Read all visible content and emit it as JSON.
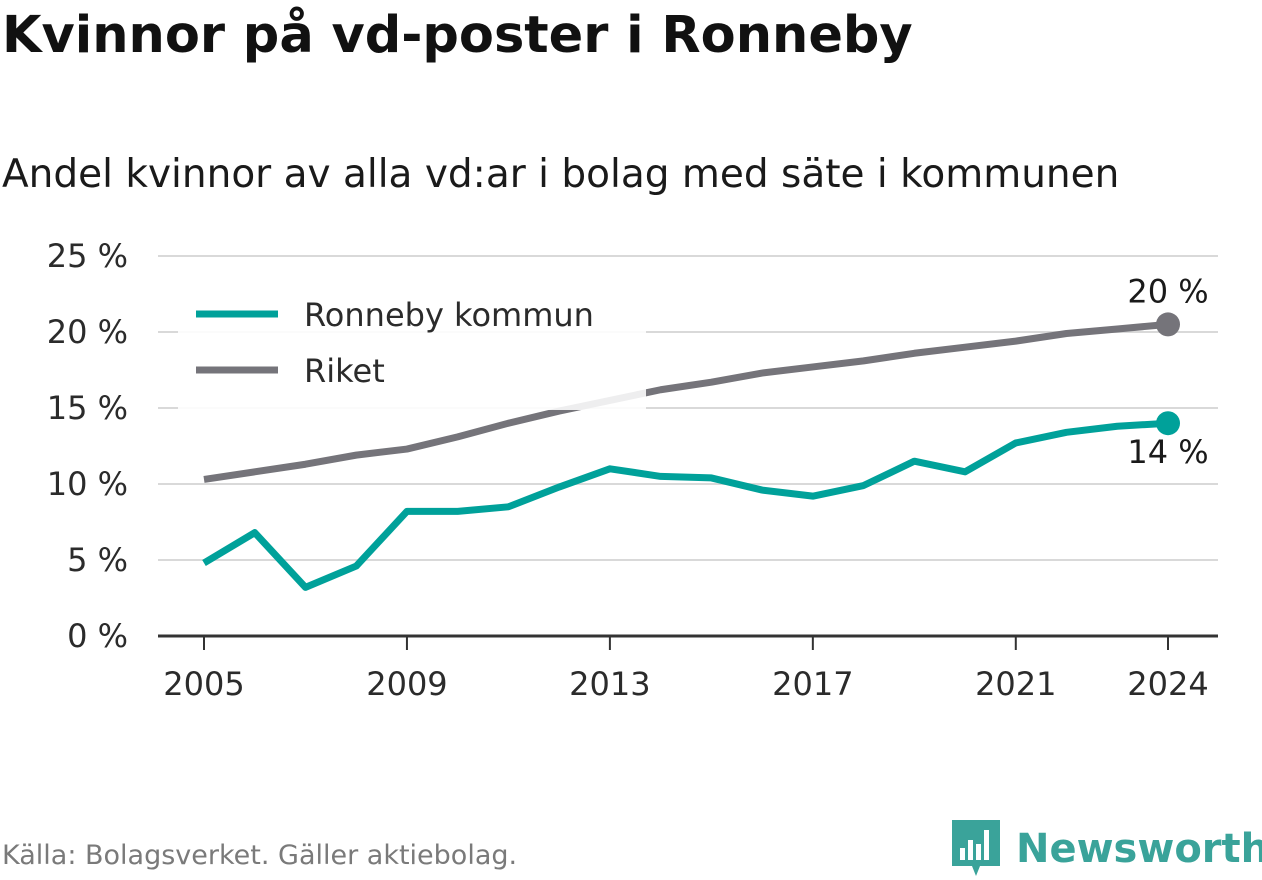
{
  "title": "Kvinnor på vd-poster i Ronneby",
  "subtitle": "Andel kvinnor av alla vd:ar i bolag med säte i kommunen",
  "source": "Källa: Bolagsverket. Gäller aktiebolag.",
  "brand": {
    "name": "Newsworthy",
    "icon": "newsworthy-logo-icon",
    "color": "#3aa39a"
  },
  "chart_data": {
    "type": "line",
    "x": [
      2005,
      2006,
      2007,
      2008,
      2009,
      2010,
      2011,
      2012,
      2013,
      2014,
      2015,
      2016,
      2017,
      2018,
      2019,
      2020,
      2021,
      2022,
      2023,
      2024
    ],
    "series": [
      {
        "name": "Ronneby kommun",
        "color": "#00a19a",
        "values": [
          4.8,
          6.8,
          3.2,
          4.6,
          8.2,
          8.2,
          8.5,
          9.8,
          11.0,
          10.5,
          10.4,
          9.6,
          9.2,
          9.9,
          11.5,
          10.8,
          12.7,
          13.4,
          13.8,
          14.0
        ],
        "end_label": "14 %"
      },
      {
        "name": "Riket",
        "color": "#75747a",
        "values": [
          10.3,
          10.8,
          11.3,
          11.9,
          12.3,
          13.1,
          14.0,
          14.8,
          15.5,
          16.2,
          16.7,
          17.3,
          17.7,
          18.1,
          18.6,
          19.0,
          19.4,
          19.9,
          20.2,
          20.5
        ],
        "end_label": "20 %"
      }
    ],
    "ylim": [
      0,
      25
    ],
    "y_ticks": [
      "0 %",
      "5 %",
      "10 %",
      "15 %",
      "20 %",
      "25 %"
    ],
    "y_tick_values": [
      0,
      5,
      10,
      15,
      20,
      25
    ],
    "x_ticks": [
      "2005",
      "2009",
      "2013",
      "2017",
      "2021",
      "2024"
    ],
    "x_tick_values": [
      2005,
      2009,
      2013,
      2017,
      2021,
      2024
    ],
    "grid": true,
    "legend_position": "top-left"
  }
}
